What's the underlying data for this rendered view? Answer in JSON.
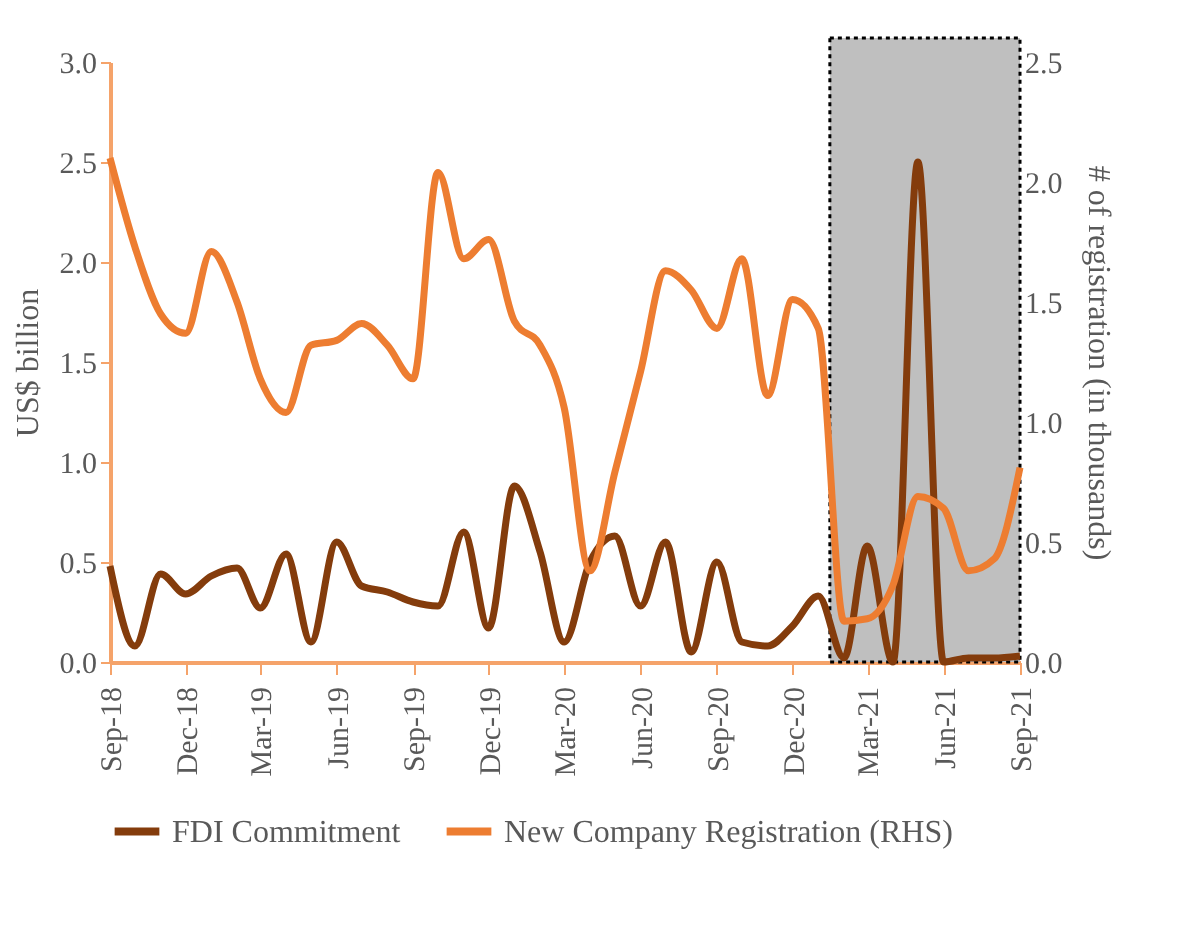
{
  "chart_data": {
    "type": "line",
    "ylabel": "US$ billion",
    "y2label": "# of registration (in thousands)",
    "x": [
      "2018-09",
      "2018-10",
      "2018-11",
      "2018-12",
      "2019-01",
      "2019-02",
      "2019-03",
      "2019-04",
      "2019-05",
      "2019-06",
      "2019-07",
      "2019-08",
      "2019-09",
      "2019-10",
      "2019-11",
      "2019-12",
      "2020-01",
      "2020-02",
      "2020-03",
      "2020-04",
      "2020-05",
      "2020-06",
      "2020-07",
      "2020-08",
      "2020-09",
      "2020-10",
      "2020-11",
      "2020-12",
      "2021-01",
      "2021-02",
      "2021-03",
      "2021-04",
      "2021-05",
      "2021-06",
      "2021-07",
      "2021-08",
      "2021-09"
    ],
    "series": [
      {
        "name": "FDI Commitment",
        "color": "#843c0c",
        "values": [
          0.48,
          0.08,
          0.44,
          0.34,
          0.43,
          0.47,
          0.27,
          0.54,
          0.1,
          0.6,
          0.38,
          0.35,
          0.3,
          0.28,
          0.65,
          0.17,
          0.88,
          0.55,
          0.1,
          0.5,
          0.63,
          0.28,
          0.6,
          0.05,
          0.5,
          0.1,
          0.08,
          0.18,
          0.33,
          0.02,
          0.58,
          0,
          2.5,
          0,
          0.02,
          0.02,
          0.03
        ]
      },
      {
        "name": "New Company Registration (RHS)",
        "color": "#ed7d31",
        "axis": "y2",
        "values": [
          2.1,
          1.73,
          1.45,
          1.37,
          1.71,
          1.5,
          1.18,
          1.04,
          1.32,
          1.34,
          1.41,
          1.32,
          1.18,
          2.04,
          1.68,
          1.76,
          1.42,
          1.32,
          1.06,
          0.38,
          0.79,
          1.21,
          1.63,
          1.55,
          1.39,
          1.68,
          1.11,
          1.51,
          1.39,
          0.17,
          0.18,
          0.32,
          0.69,
          0.64,
          0.38,
          0.43,
          0.81
        ]
      }
    ],
    "xlim": [
      "2018-09",
      "2021-09"
    ],
    "xticks": [
      {
        "value": "2018-09",
        "label": "Sep-18"
      },
      {
        "value": "2018-12",
        "label": "Dec-18"
      },
      {
        "value": "2019-03",
        "label": "Mar-19"
      },
      {
        "value": "2019-06",
        "label": "Jun-19"
      },
      {
        "value": "2019-09",
        "label": "Sep-19"
      },
      {
        "value": "2019-12",
        "label": "Dec-19"
      },
      {
        "value": "2020-03",
        "label": "Mar-20"
      },
      {
        "value": "2020-06",
        "label": "Jun-20"
      },
      {
        "value": "2020-09",
        "label": "Sep-20"
      },
      {
        "value": "2020-12",
        "label": "Dec-20"
      },
      {
        "value": "2021-03",
        "label": "Mar-21"
      },
      {
        "value": "2021-06",
        "label": "Jun-21"
      },
      {
        "value": "2021-09",
        "label": "Sep-21"
      }
    ],
    "ylim": [
      0,
      3
    ],
    "yticks": [
      {
        "value": 0,
        "label": "0.0"
      },
      {
        "value": 0.5,
        "label": "0.5"
      },
      {
        "value": 1,
        "label": "1.0"
      },
      {
        "value": 1.5,
        "label": "1.5"
      },
      {
        "value": 2,
        "label": "2.0"
      },
      {
        "value": 2.5,
        "label": "2.5"
      },
      {
        "value": 3,
        "label": "3.0"
      }
    ],
    "y2lim": [
      0,
      2.5
    ],
    "y2ticks": [
      {
        "value": 0,
        "label": "0.0"
      },
      {
        "value": 0.5,
        "label": "0.5"
      },
      {
        "value": 1,
        "label": "1.0"
      },
      {
        "value": 1.5,
        "label": "1.5"
      },
      {
        "value": 2,
        "label": "2.0"
      },
      {
        "value": 2.5,
        "label": "2.5"
      }
    ],
    "bands": [
      {
        "axis": "x",
        "from": "2021-01-15",
        "to": "2021-09",
        "color": "#bfbfbf"
      }
    ],
    "grid": false,
    "legend": "bottom",
    "line_style": "solid",
    "marker": "none"
  }
}
